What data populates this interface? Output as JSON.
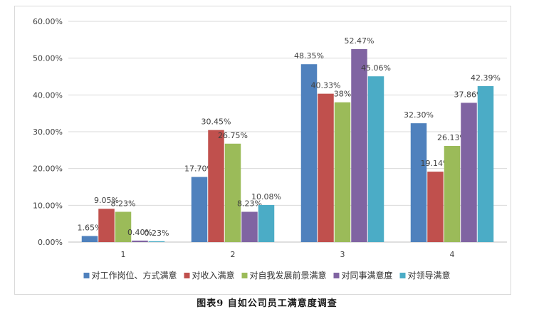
{
  "caption": "图表9 自如公司员工满意度调查",
  "chart_data": {
    "type": "bar",
    "categories": [
      "1",
      "2",
      "3",
      "4"
    ],
    "ylim": [
      0,
      60
    ],
    "yticks": [
      "0.00%",
      "10.00%",
      "20.00%",
      "30.00%",
      "40.00%",
      "50.00%",
      "60.00%"
    ],
    "grid": true,
    "legend_position": "bottom",
    "series": [
      {
        "name": "对工作岗位、方式满意",
        "color": "#4F81BD",
        "values": [
          1.65,
          17.7,
          48.35,
          32.3
        ],
        "labels": [
          "1.65%",
          "17.70%",
          "48.35%",
          "32.30%"
        ]
      },
      {
        "name": "对收入满意",
        "color": "#C0504D",
        "values": [
          9.05,
          30.45,
          40.33,
          19.14
        ],
        "labels": [
          "9.05%",
          "30.45%",
          "40.33%",
          "19.14%"
        ]
      },
      {
        "name": "对自我发展前景满意",
        "color": "#9BBB59",
        "values": [
          8.23,
          26.75,
          38.0,
          26.13
        ],
        "labels": [
          "8.23%",
          "26.75%",
          "38%",
          "26.13%"
        ]
      },
      {
        "name": "对同事满意度",
        "color": "#8064A2",
        "values": [
          0.4,
          8.23,
          52.47,
          37.86
        ],
        "labels": [
          "0.40%",
          "8.23%",
          "52.47%",
          "37.86%"
        ]
      },
      {
        "name": "对领导满意",
        "color": "#4BACC6",
        "values": [
          0.23,
          10.08,
          45.06,
          42.39
        ],
        "labels": [
          "0.23%",
          "10.08%",
          "45.06%",
          "42.39%"
        ]
      }
    ]
  }
}
